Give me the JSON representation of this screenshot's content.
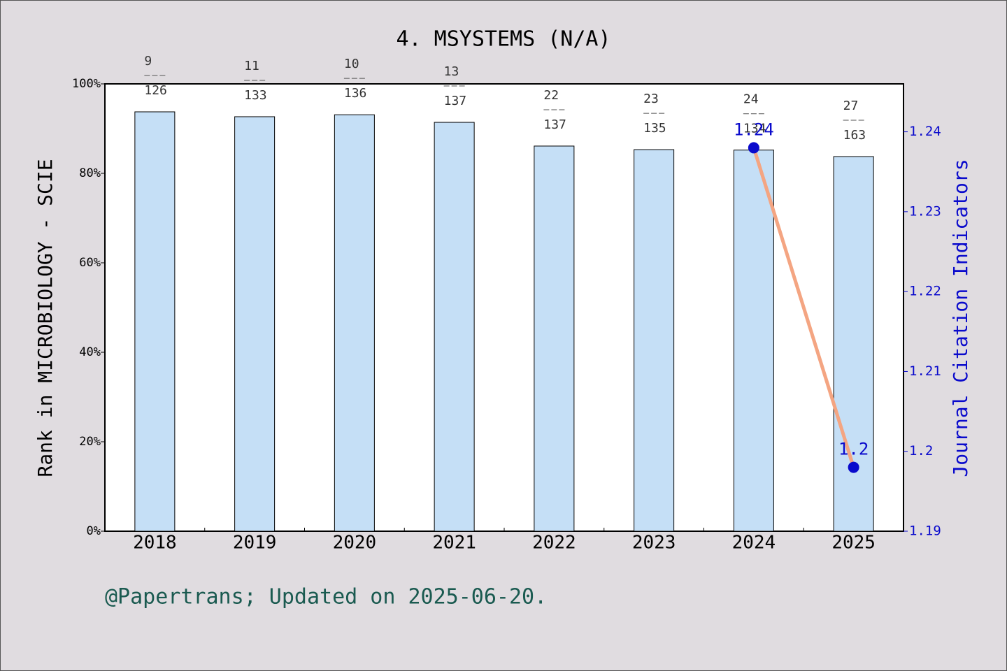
{
  "chart_data": {
    "type": "bar-line",
    "title": "4. MSYSTEMS (N/A)",
    "y_label": "Rank in MICROBIOLOGY - SCIE",
    "y2_label": "Journal Citation Indicators",
    "note": "@Papertrans; Updated on 2025-06-20.",
    "categories": [
      "2018",
      "2019",
      "2020",
      "2021",
      "2022",
      "2023",
      "2024",
      "2025"
    ],
    "series": [
      {
        "type": "bar",
        "color": "#c5dff6",
        "values": [
          93.75,
          92.66,
          93.1,
          91.4,
          86.1,
          85.3,
          85.2,
          83.75
        ]
      },
      {
        "type": "line",
        "axis": "y2",
        "color": "#f4a582",
        "marker_color": "#0a0acc",
        "label_color": "#0a0acc",
        "values": [
          null,
          null,
          null,
          null,
          null,
          null,
          1.238,
          1.198
        ],
        "value_labels": [
          null,
          null,
          null,
          null,
          null,
          null,
          "1.24",
          "1.2"
        ]
      }
    ],
    "ranks": [
      "9",
      "11",
      "10",
      "13",
      "22",
      "23",
      "24",
      "27"
    ],
    "totals": [
      "126",
      "133",
      "136",
      "137",
      "137",
      "135",
      "134",
      "163"
    ],
    "ylim": [
      0,
      100
    ],
    "yticks": [
      {
        "value": 0,
        "label": "0%"
      },
      {
        "value": 20,
        "label": "20%"
      },
      {
        "value": 40,
        "label": "40%"
      },
      {
        "value": 60,
        "label": "60%"
      },
      {
        "value": 80,
        "label": "80%"
      },
      {
        "value": 100,
        "label": "100%"
      }
    ],
    "y2lim": [
      1.19,
      1.246
    ],
    "y2ticks": [
      1.19,
      1.2,
      1.21,
      1.22,
      1.23,
      1.24
    ]
  }
}
